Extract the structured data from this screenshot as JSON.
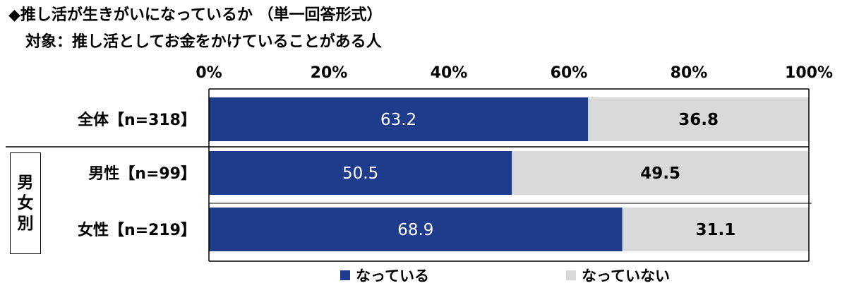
{
  "title": {
    "line1": "◆推し活が生きがいになっているか （単一回答形式）",
    "line2": "対象：推し活としてお金をかけていることがある人"
  },
  "group_label": [
    "男",
    "女",
    "別"
  ],
  "chart_data": {
    "type": "bar",
    "orientation": "horizontal",
    "stacked": true,
    "categories": [
      "全体【n=318】",
      "男性【n=99】",
      "女性【n=219】"
    ],
    "series": [
      {
        "name": "なっている",
        "values": [
          63.2,
          50.5,
          68.9
        ],
        "color": "#1f3c8c",
        "label_color": "#ffffff"
      },
      {
        "name": "なっていない",
        "values": [
          36.8,
          49.5,
          31.1
        ],
        "color": "#d9d9d9",
        "label_color": "#000000"
      }
    ],
    "xticks": [
      "0%",
      "20%",
      "40%",
      "60%",
      "80%",
      "100%"
    ],
    "xlim": [
      0,
      100
    ],
    "grid": false,
    "legend_position": "bottom"
  }
}
